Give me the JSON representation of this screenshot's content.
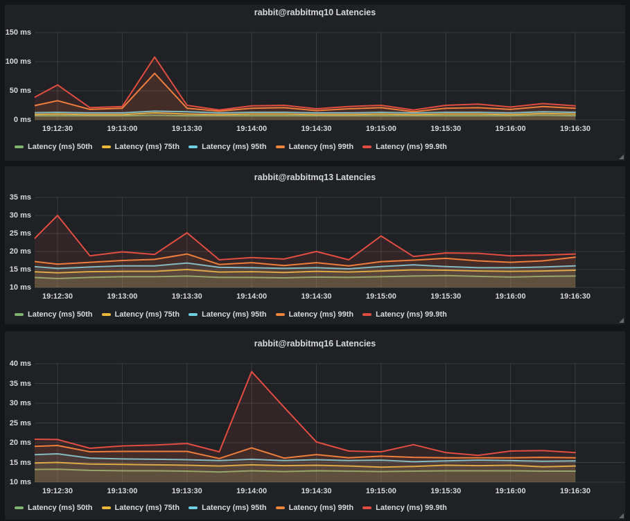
{
  "colors": {
    "page_bg": "#141517",
    "panel_bg": "#1f2124",
    "grid": "rgba(255,255,255,0.12)",
    "text": "#d8d9da",
    "p50": "#7EB26D",
    "p75": "#EAB839",
    "p95": "#6ED0E0",
    "p99": "#EF843C",
    "p999": "#E24D42"
  },
  "chart_data": [
    {
      "type": "area",
      "title": "rabbit@rabbitmq10 Latencies",
      "xlabel": "",
      "ylabel": "ms",
      "ylim": [
        0,
        150
      ],
      "grid": true,
      "legend_position": "bottom-left",
      "y_tick_labels": [
        "150 ms",
        "100 ms",
        "50 ms",
        "0 ms"
      ],
      "y_tick_values": [
        150,
        100,
        50,
        0
      ],
      "x_tick_labels": [
        "19:12:30",
        "19:13:00",
        "19:13:30",
        "19:14:00",
        "19:14:30",
        "19:15:00",
        "19:15:30",
        "19:16:00",
        "19:16:30"
      ],
      "x": [
        "19:12:15",
        "19:12:30",
        "19:12:45",
        "19:13:00",
        "19:13:15",
        "19:13:30",
        "19:13:45",
        "19:14:00",
        "19:14:15",
        "19:14:30",
        "19:14:45",
        "19:15:00",
        "19:15:15",
        "19:15:30",
        "19:15:45",
        "19:16:00",
        "19:16:15",
        "19:16:30"
      ],
      "series": [
        {
          "name": "Latency (ms) 50th",
          "color": "#7EB26D",
          "values": [
            7,
            7,
            7,
            7,
            8,
            7,
            7,
            7,
            7,
            7,
            7,
            7,
            7,
            7,
            7,
            7,
            8,
            7
          ]
        },
        {
          "name": "Latency (ms) 75th",
          "color": "#EAB839",
          "values": [
            9,
            10,
            9,
            9,
            12,
            10,
            9,
            10,
            10,
            9,
            9,
            10,
            9,
            10,
            10,
            9,
            11,
            10
          ]
        },
        {
          "name": "Latency (ms) 95th",
          "color": "#6ED0E0",
          "values": [
            12,
            13,
            12,
            12,
            15,
            14,
            12,
            13,
            13,
            12,
            12,
            13,
            12,
            13,
            13,
            12,
            14,
            13
          ]
        },
        {
          "name": "Latency (ms) 99th",
          "color": "#EF843C",
          "values": [
            21,
            33,
            18,
            20,
            80,
            20,
            15,
            20,
            21,
            16,
            19,
            21,
            14,
            20,
            21,
            18,
            23,
            20
          ]
        },
        {
          "name": "Latency (ms) 99.9th",
          "color": "#E24D42",
          "values": [
            30,
            60,
            21,
            23,
            108,
            25,
            17,
            24,
            25,
            19,
            23,
            25,
            17,
            25,
            27,
            22,
            28,
            24
          ]
        }
      ]
    },
    {
      "type": "area",
      "title": "rabbit@rabbitmq13 Latencies",
      "xlabel": "",
      "ylabel": "ms",
      "ylim": [
        10,
        35
      ],
      "grid": true,
      "legend_position": "bottom-left",
      "y_tick_labels": [
        "35 ms",
        "30 ms",
        "25 ms",
        "20 ms",
        "15 ms",
        "10 ms"
      ],
      "y_tick_values": [
        35,
        30,
        25,
        20,
        15,
        10
      ],
      "x_tick_labels": [
        "19:12:30",
        "19:13:00",
        "19:13:30",
        "19:14:00",
        "19:14:30",
        "19:15:00",
        "19:15:30",
        "19:16:00",
        "19:16:30"
      ],
      "x": [
        "19:12:15",
        "19:12:30",
        "19:12:45",
        "19:13:00",
        "19:13:15",
        "19:13:30",
        "19:13:45",
        "19:14:00",
        "19:14:15",
        "19:14:30",
        "19:14:45",
        "19:15:00",
        "19:15:15",
        "19:15:30",
        "19:15:45",
        "19:16:00",
        "19:16:15",
        "19:16:30"
      ],
      "series": [
        {
          "name": "Latency (ms) 50th",
          "color": "#7EB26D",
          "values": [
            12.9,
            12.5,
            12.8,
            13,
            13,
            13.2,
            12.8,
            12.8,
            12.7,
            12.9,
            12.8,
            13,
            13.2,
            13.3,
            13.1,
            12.9,
            13.1,
            13.2
          ]
        },
        {
          "name": "Latency (ms) 75th",
          "color": "#EAB839",
          "values": [
            14.5,
            14.1,
            14.4,
            14.5,
            14.5,
            15,
            14.3,
            14.4,
            14.2,
            14.5,
            14.3,
            14.6,
            14.9,
            14.8,
            14.6,
            14.5,
            14.6,
            14.8
          ]
        },
        {
          "name": "Latency (ms) 95th",
          "color": "#6ED0E0",
          "values": [
            16,
            15.3,
            15.7,
            16,
            16,
            16.8,
            15.6,
            15.5,
            15.3,
            15.5,
            15.2,
            15.8,
            16.3,
            15.8,
            15.5,
            15.5,
            15.7,
            16
          ]
        },
        {
          "name": "Latency (ms) 99th",
          "color": "#EF843C",
          "values": [
            17.5,
            16.5,
            17,
            17.5,
            17.8,
            19.3,
            16.4,
            16.9,
            16.1,
            16.9,
            16,
            17.2,
            17.6,
            18.1,
            17.4,
            17,
            17.4,
            18.4
          ]
        },
        {
          "name": "Latency (ms) 99.9th",
          "color": "#E24D42",
          "values": [
            21,
            30,
            18.8,
            19.9,
            19.2,
            25.2,
            17.7,
            18.3,
            17.9,
            20,
            17.7,
            24.3,
            18.6,
            19.6,
            19.5,
            18.8,
            19,
            19.3
          ]
        }
      ]
    },
    {
      "type": "area",
      "title": "rabbit@rabbitmq16 Latencies",
      "xlabel": "",
      "ylabel": "ms",
      "ylim": [
        10,
        40
      ],
      "grid": true,
      "legend_position": "bottom-left",
      "y_tick_labels": [
        "40 ms",
        "35 ms",
        "30 ms",
        "25 ms",
        "20 ms",
        "15 ms",
        "10 ms"
      ],
      "y_tick_values": [
        40,
        35,
        30,
        25,
        20,
        15,
        10
      ],
      "x_tick_labels": [
        "19:12:30",
        "19:13:00",
        "19:13:30",
        "19:14:00",
        "19:14:30",
        "19:15:00",
        "19:15:30",
        "19:16:00",
        "19:16:30"
      ],
      "x": [
        "19:12:15",
        "19:12:30",
        "19:12:45",
        "19:13:00",
        "19:13:15",
        "19:13:30",
        "19:13:45",
        "19:14:00",
        "19:14:15",
        "19:14:30",
        "19:14:45",
        "19:15:00",
        "19:15:15",
        "19:15:30",
        "19:15:45",
        "19:16:00",
        "19:16:15",
        "19:16:30"
      ],
      "series": [
        {
          "name": "Latency (ms) 50th",
          "color": "#7EB26D",
          "values": [
            13.2,
            13.3,
            13,
            12.9,
            12.9,
            12.8,
            12.6,
            12.9,
            12.7,
            12.9,
            12.8,
            12.7,
            12.8,
            12.9,
            12.9,
            12.9,
            12.8,
            12.8
          ]
        },
        {
          "name": "Latency (ms) 75th",
          "color": "#EAB839",
          "values": [
            14.8,
            15,
            14.6,
            14.5,
            14.4,
            14.3,
            14.1,
            14.4,
            14.2,
            14.3,
            14.1,
            13.8,
            14,
            14.3,
            14.2,
            14.3,
            13.9,
            14.1
          ]
        },
        {
          "name": "Latency (ms) 95th",
          "color": "#6ED0E0",
          "values": [
            16.9,
            17.2,
            16.1,
            15.9,
            15.8,
            15.7,
            15.5,
            15.8,
            15.5,
            15.7,
            15.5,
            15.6,
            15.2,
            15.4,
            15.6,
            15.5,
            15.3,
            15.4
          ]
        },
        {
          "name": "Latency (ms) 99th",
          "color": "#EF843C",
          "values": [
            19,
            19.3,
            17.7,
            17.8,
            17.8,
            17.8,
            16,
            18.7,
            16.1,
            17,
            16.2,
            16.6,
            16.3,
            16.2,
            16.2,
            16.2,
            16.3,
            16.2
          ]
        },
        {
          "name": "Latency (ms) 99.9th",
          "color": "#E24D42",
          "values": [
            20.9,
            20.8,
            18.6,
            19.2,
            19.4,
            19.8,
            17.7,
            38,
            29,
            20.2,
            17.9,
            17.7,
            19.5,
            17.5,
            16.8,
            17.9,
            18,
            17.5
          ]
        }
      ]
    }
  ]
}
